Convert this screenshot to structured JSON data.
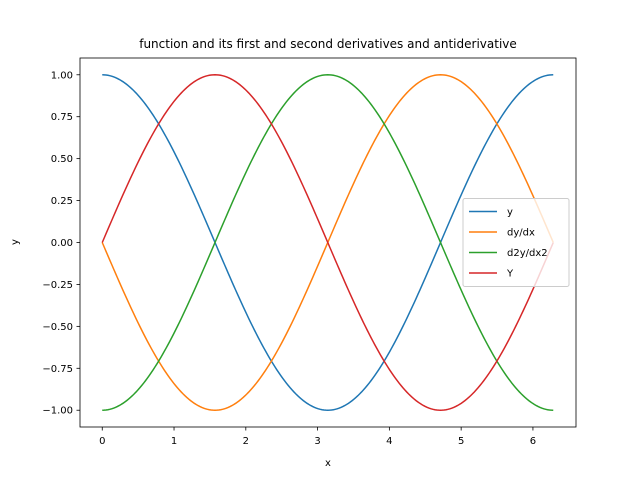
{
  "chart_data": {
    "type": "line",
    "title": "function and its first and second derivatives and antiderivative",
    "xlabel": "x",
    "ylabel": "y",
    "xlim": [
      -0.31,
      6.6
    ],
    "ylim": [
      -1.1,
      1.1
    ],
    "xticks": [
      "0",
      "1",
      "2",
      "3",
      "4",
      "5",
      "6"
    ],
    "yticks": [
      "1.00",
      "0.75",
      "0.50",
      "0.25",
      "0.00",
      "−0.25",
      "−0.50",
      "−0.75",
      "−1.00"
    ],
    "grid": false,
    "legend_position": "center-right",
    "x_range": [
      0,
      6.283
    ],
    "series": [
      {
        "name": "y",
        "color": "#1f77b4",
        "fn": "cos"
      },
      {
        "name": "dy/dx",
        "color": "#ff7f0e",
        "fn": "neg_sin"
      },
      {
        "name": "d2y/dx2",
        "color": "#2ca02c",
        "fn": "neg_cos"
      },
      {
        "name": "Y",
        "color": "#d62728",
        "fn": "sin"
      }
    ]
  }
}
